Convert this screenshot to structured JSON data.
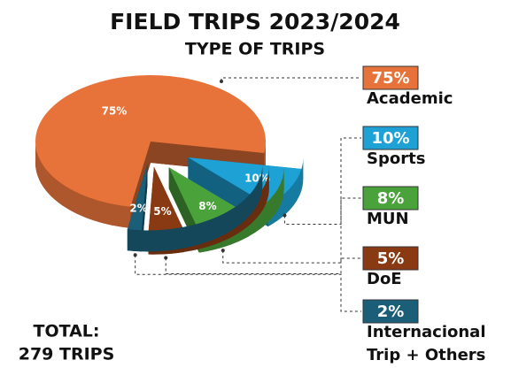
{
  "chart_data": {
    "type": "pie",
    "title": "FIELD TRIPS 2023/2024",
    "subtitle": "TYPE OF TRIPS",
    "categories": [
      "Academic",
      "Sports",
      "MUN",
      "DoE",
      "Internacional Trip + Others"
    ],
    "values": [
      75,
      10,
      8,
      5,
      2
    ],
    "value_labels": [
      "75%",
      "10%",
      "8%",
      "5%",
      "2%"
    ],
    "colors": [
      "#e8733a",
      "#1ea2d6",
      "#4aa33a",
      "#8a3a12",
      "#1b5e78"
    ],
    "annotations": [
      "TOTAL:",
      "279 TRIPS"
    ]
  }
}
